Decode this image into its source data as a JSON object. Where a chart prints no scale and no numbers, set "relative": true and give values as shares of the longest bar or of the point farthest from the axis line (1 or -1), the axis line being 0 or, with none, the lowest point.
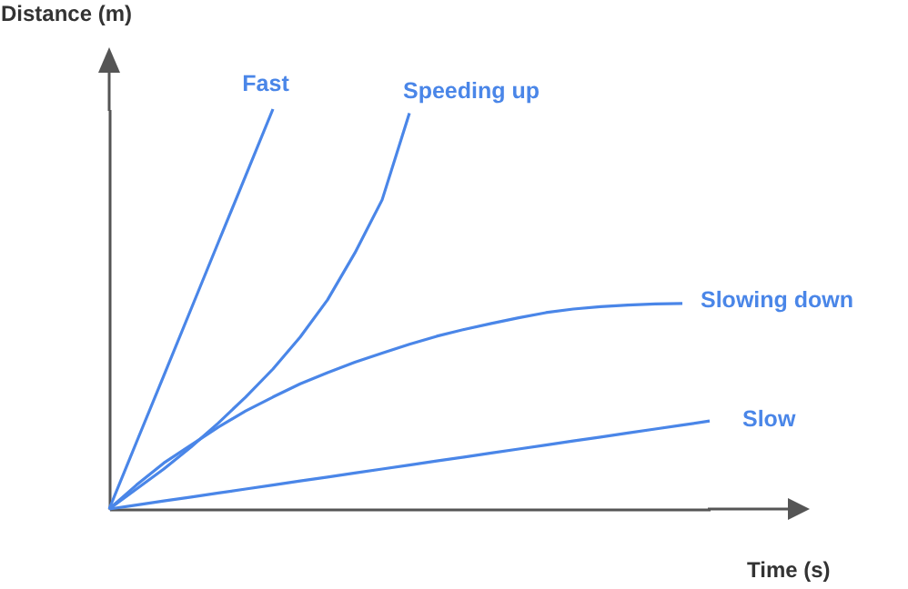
{
  "chart_data": {
    "type": "line",
    "xlabel": "Time (s)",
    "ylabel": "Distance (m)",
    "relative": true,
    "marker": "none",
    "line_style": "solid",
    "categories": [
      null,
      null,
      null,
      null,
      null,
      null,
      null,
      null,
      null,
      null,
      null,
      null,
      null,
      null,
      null,
      null,
      null,
      null,
      null,
      null,
      null,
      null,
      null
    ],
    "series": [
      {
        "name": "Fast",
        "color": "#4a86e8",
        "values": [
          0,
          0.167,
          0.333,
          0.5,
          0.667,
          0.833,
          1,
          null,
          null,
          null,
          null,
          null,
          null,
          null,
          null,
          null,
          null,
          null,
          null,
          null,
          null,
          null,
          null
        ]
      },
      {
        "name": "Speeding up",
        "color": "#4a86e8",
        "values": [
          0,
          0.05,
          0.1,
          0.155,
          0.215,
          0.28,
          0.35,
          0.43,
          0.523,
          0.64,
          0.773,
          0.99,
          null,
          null,
          null,
          null,
          null,
          null,
          null,
          null,
          null,
          null,
          null
        ]
      },
      {
        "name": "Slowing down",
        "color": "#4a86e8",
        "values": [
          0,
          0.06,
          0.115,
          0.16,
          0.205,
          0.245,
          0.28,
          0.313,
          0.341,
          0.367,
          0.39,
          0.412,
          0.432,
          0.449,
          0.464,
          0.478,
          0.491,
          0.5,
          0.506,
          0.51,
          0.513,
          0.514,
          null
        ]
      },
      {
        "name": "Slow",
        "color": "#4a86e8",
        "values": [
          0,
          0.01,
          0.02,
          0.03,
          0.04,
          0.05,
          0.06,
          0.07,
          0.08,
          0.09,
          0.1,
          0.11,
          0.12,
          0.13,
          0.14,
          0.15,
          0.16,
          0.17,
          0.18,
          0.19,
          0.2,
          0.21,
          0.22
        ]
      }
    ]
  }
}
